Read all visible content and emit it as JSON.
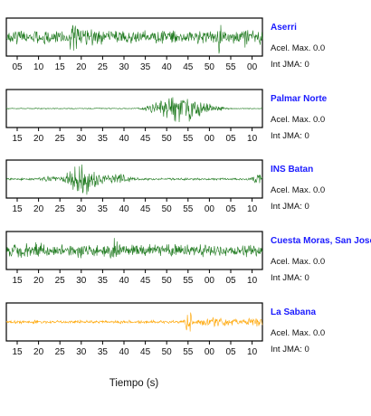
{
  "chart_data": {
    "type": "line",
    "xlabel": "Tiempo (s)",
    "panels": [
      {
        "station": "Aserri",
        "accel_label": "Acel. Max. 0.0",
        "jma_label": "Int JMA: 0",
        "color": "#1f7a1f",
        "tick_labels": [
          "05",
          "10",
          "15",
          "20",
          "25",
          "30",
          "35",
          "40",
          "45",
          "50",
          "55",
          "00"
        ],
        "signal": {
          "noise": 0.42,
          "events": [
            {
              "t": 0.27,
              "amp": 0.9,
              "width": 0.03
            },
            {
              "t": 0.33,
              "amp": 0.55,
              "width": 0.05
            },
            {
              "t": 0.83,
              "amp": 0.95,
              "width": 0.02
            },
            {
              "t": 0.93,
              "amp": 0.7,
              "width": 0.02
            },
            {
              "t": 0.99,
              "amp": 0.6,
              "width": 0.015
            }
          ]
        }
      },
      {
        "station": "Palmar Norte",
        "accel_label": "Acel. Max. 0.0",
        "jma_label": "Int JMA: 0",
        "color": "#1f7a1f",
        "tick_labels": [
          "15",
          "20",
          "25",
          "30",
          "35",
          "40",
          "45",
          "50",
          "55",
          "00",
          "05",
          "10"
        ],
        "signal": {
          "noise": 0.03,
          "events": [
            {
              "t": 0.68,
              "amp": 0.95,
              "width": 0.07
            },
            {
              "t": 0.63,
              "amp": 0.4,
              "width": 0.05
            },
            {
              "t": 0.76,
              "amp": 0.35,
              "width": 0.06
            }
          ]
        }
      },
      {
        "station": "INS Batan",
        "accel_label": "Acel. Max. 0.0",
        "jma_label": "Int JMA: 0",
        "color": "#1f7a1f",
        "tick_labels": [
          "15",
          "20",
          "25",
          "30",
          "35",
          "40",
          "45",
          "50",
          "55",
          "00",
          "05",
          "10"
        ],
        "signal": {
          "noise": 0.07,
          "events": [
            {
              "t": 0.3,
              "amp": 1.0,
              "width": 0.05
            },
            {
              "t": 0.43,
              "amp": 0.35,
              "width": 0.05
            },
            {
              "t": 0.17,
              "amp": 0.18,
              "width": 0.04
            },
            {
              "t": 0.99,
              "amp": 0.45,
              "width": 0.02
            }
          ]
        }
      },
      {
        "station": "Cuesta Moras, San Jose",
        "accel_label": "Acel. Max. 0.0",
        "jma_label": "Int JMA: 0",
        "color": "#1f7a1f",
        "tick_labels": [
          "15",
          "20",
          "25",
          "30",
          "35",
          "40",
          "45",
          "50",
          "55",
          "00",
          "05",
          "10"
        ],
        "signal": {
          "noise": 0.38,
          "events": [
            {
              "t": 0.1,
              "amp": 0.5,
              "width": 0.08
            },
            {
              "t": 0.29,
              "amp": 0.55,
              "width": 0.03
            },
            {
              "t": 0.42,
              "amp": 0.9,
              "width": 0.015
            },
            {
              "t": 0.77,
              "amp": 0.4,
              "width": 0.04
            },
            {
              "t": 0.9,
              "amp": 0.45,
              "width": 0.03
            }
          ]
        }
      },
      {
        "station": "La Sabana",
        "accel_label": "Acel. Max. 0.0",
        "jma_label": "Int JMA: 0",
        "color": "#ffa500",
        "tick_labels": [
          "15",
          "20",
          "25",
          "30",
          "35",
          "40",
          "45",
          "50",
          "55",
          "00",
          "05",
          "10"
        ],
        "signal": {
          "noise": 0.1,
          "events": [
            {
              "t": 0.71,
              "amp": 1.0,
              "width": 0.01
            },
            {
              "t": 0.82,
              "amp": 0.32,
              "width": 0.07
            },
            {
              "t": 0.13,
              "amp": 0.12,
              "width": 0.05
            },
            {
              "t": 0.97,
              "amp": 0.28,
              "width": 0.04
            }
          ]
        }
      }
    ]
  }
}
